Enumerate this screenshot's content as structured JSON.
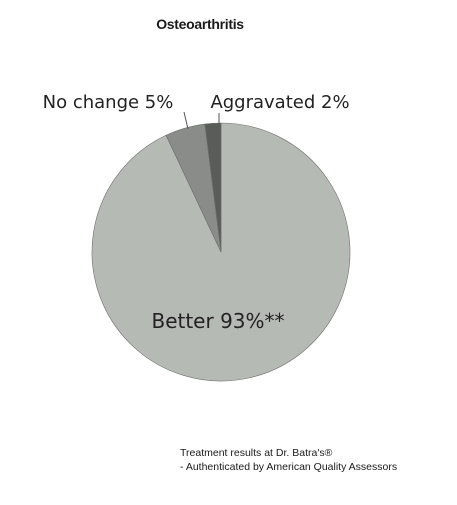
{
  "chart_data": {
    "type": "pie",
    "title": "Osteoarthritis",
    "slices": [
      {
        "label": "Better 93%**",
        "value": 93,
        "color": "#b6bab5"
      },
      {
        "label": "No change 5%",
        "value": 5,
        "color": "#8a8c8a"
      },
      {
        "label": "Aggravated 2%",
        "value": 2,
        "color": "#5a5c5a"
      }
    ],
    "legend": "none"
  },
  "footnote": {
    "line1": "Treatment results at Dr. Batra's®",
    "line2": "- Authenticated by American Quality Assessors"
  }
}
